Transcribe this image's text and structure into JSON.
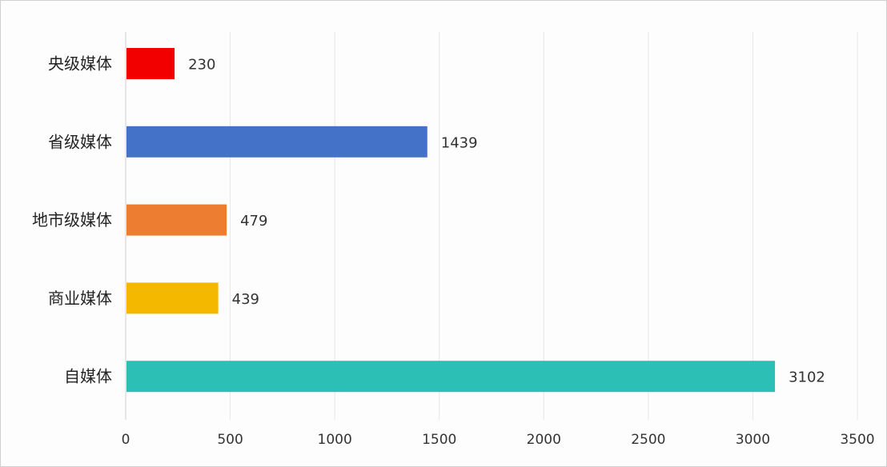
{
  "chart_data": {
    "type": "bar",
    "orientation": "horizontal",
    "title": "",
    "xlabel": "",
    "ylabel": "",
    "categories": [
      "央级媒体",
      "省级媒体",
      "地市级媒体",
      "商业媒体",
      "自媒体"
    ],
    "values": [
      230,
      1439,
      479,
      439,
      3102
    ],
    "colors": [
      "#f20000",
      "#4472c8",
      "#ed7d31",
      "#f5b800",
      "#2bbfb6"
    ],
    "xlim": [
      0,
      3500
    ],
    "xticks": [
      0,
      500,
      1000,
      1500,
      2000,
      2500,
      3000,
      3500
    ],
    "grid": true,
    "data_labels": true
  }
}
